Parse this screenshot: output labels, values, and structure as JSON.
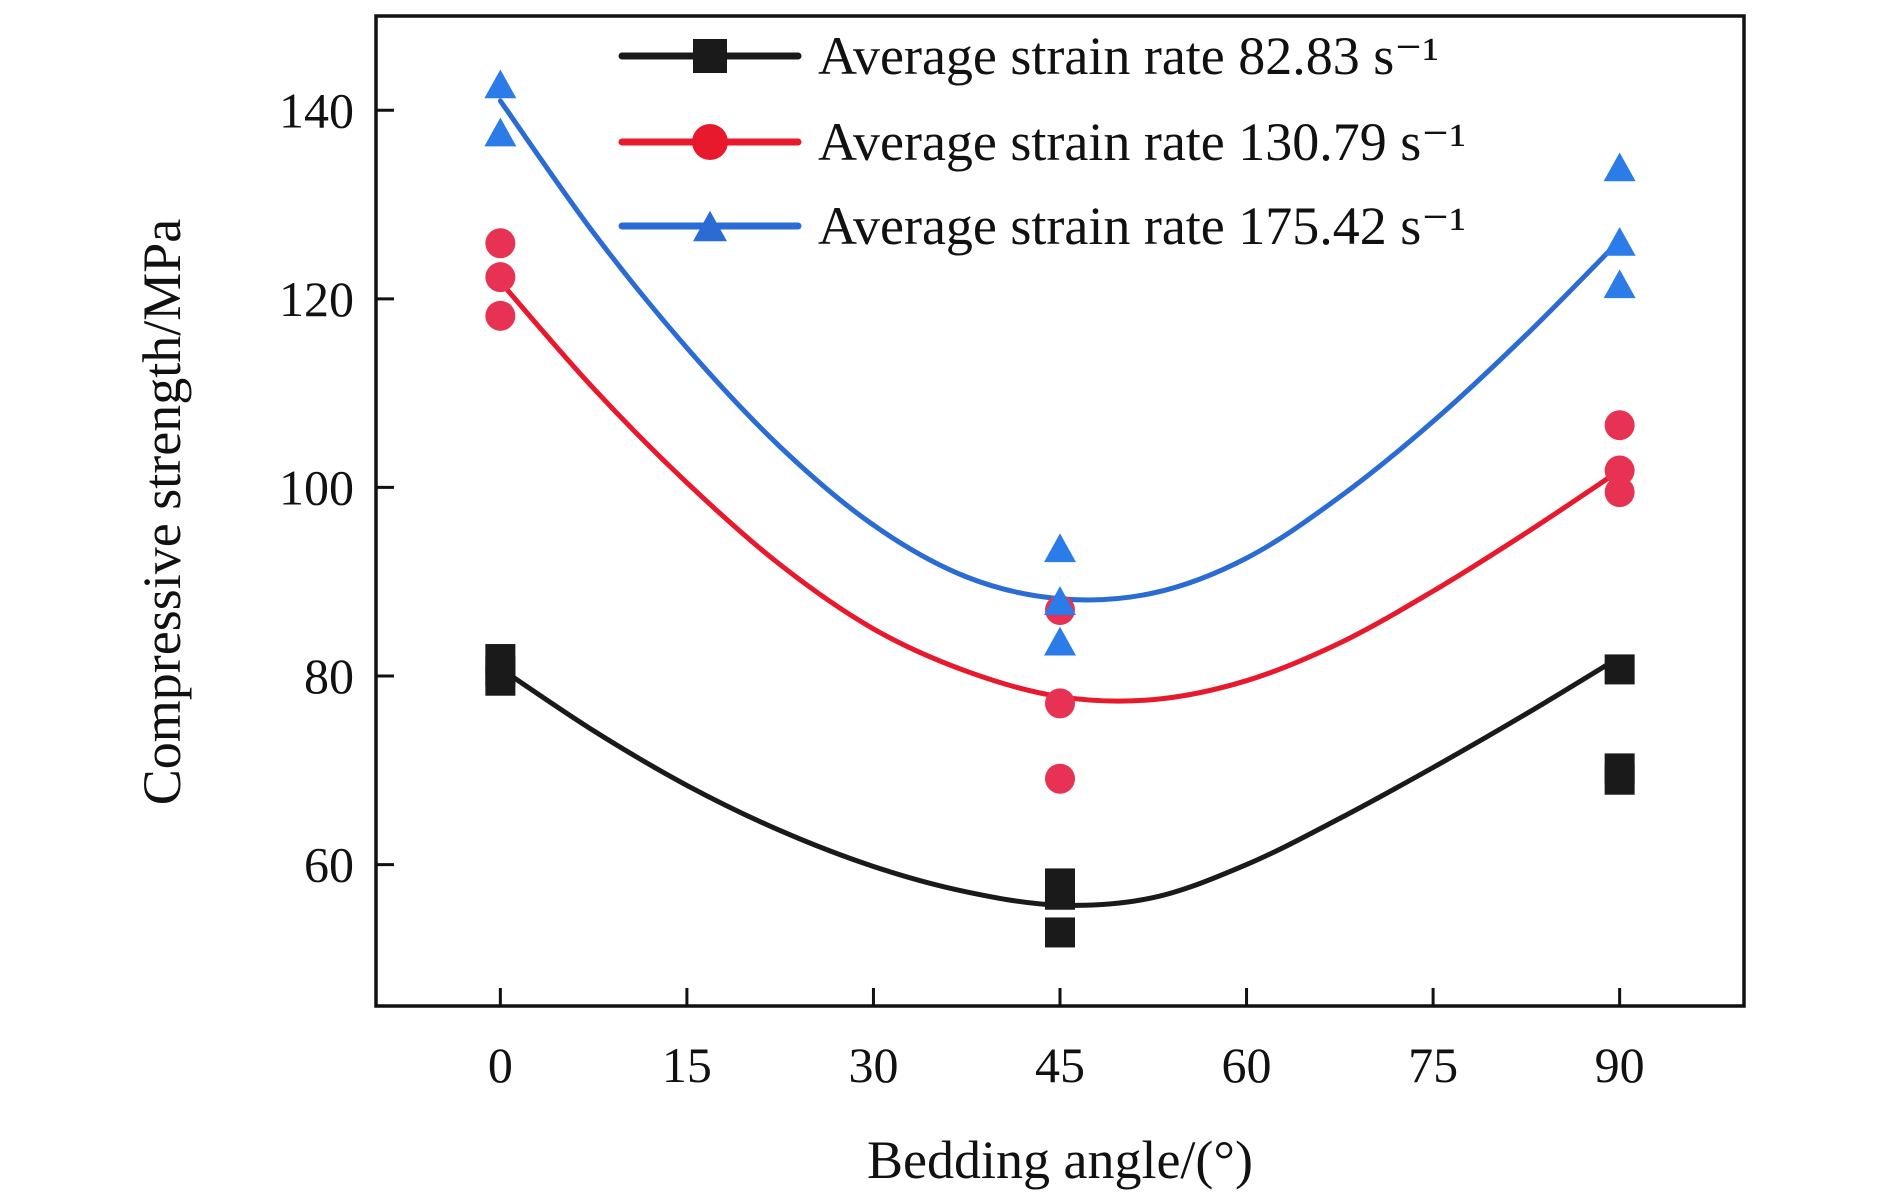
{
  "chart_data": {
    "type": "scatter",
    "title": "",
    "xlabel": "Bedding angle/(°)",
    "ylabel": "Compressive strength/MPa",
    "xlim": [
      -10,
      100
    ],
    "ylim": [
      45,
      150
    ],
    "xticks": [
      0,
      15,
      30,
      45,
      60,
      75,
      90
    ],
    "yticks": [
      60,
      80,
      100,
      120,
      140
    ],
    "grid": false,
    "legend_position": "top-right",
    "series": [
      {
        "name": "Average strain rate 82.83 s⁻¹",
        "color": "#1a1a1a",
        "marker": "square",
        "x": [
          0,
          0,
          0,
          45,
          45,
          45,
          90,
          90,
          90
        ],
        "y": [
          79.5,
          80.5,
          81.8,
          52.8,
          56.8,
          58.0,
          69.0,
          70.2,
          80.7
        ],
        "fit": {
          "x": [
            0,
            7.5,
            15,
            22.5,
            30,
            37.5,
            45,
            52.5,
            60,
            67.5,
            75,
            82.5,
            90
          ],
          "y": [
            80.8,
            74.2,
            68.4,
            63.6,
            59.8,
            57.1,
            55.7,
            56.5,
            60.0,
            64.9,
            70.3,
            76.0,
            82.0
          ]
        }
      },
      {
        "name": "Average strain rate 130.79 s⁻¹",
        "color": "#e8192c",
        "point_color": "#e83254",
        "marker": "circle",
        "x": [
          0,
          0,
          0,
          45,
          45,
          45,
          90,
          90,
          90
        ],
        "y": [
          118.2,
          122.3,
          125.9,
          69.1,
          77.1,
          87.0,
          99.5,
          101.8,
          106.6
        ],
        "fit": {
          "x": [
            0,
            7.5,
            15,
            22.5,
            30,
            37.5,
            45,
            52.5,
            60,
            67.5,
            75,
            82.5,
            90
          ],
          "y": [
            121.8,
            110.5,
            100.5,
            91.8,
            85.0,
            80.5,
            77.8,
            77.5,
            79.5,
            83.5,
            89.0,
            95.2,
            101.8
          ]
        }
      },
      {
        "name": "Average strain rate 175.42 s⁻¹",
        "color": "#2a6cd3",
        "point_color": "#2b7be8",
        "marker": "triangle",
        "x": [
          0,
          0,
          45,
          45,
          45,
          90,
          90,
          90
        ],
        "y": [
          137.7,
          142.8,
          83.7,
          88.0,
          93.6,
          121.6,
          126.1,
          134.0
        ],
        "fit": {
          "x": [
            0,
            7.5,
            15,
            22.5,
            30,
            37.5,
            45,
            52.5,
            60,
            67.5,
            75,
            82.5,
            90
          ],
          "y": [
            141.0,
            127.0,
            114.8,
            104.3,
            96.0,
            90.5,
            88.2,
            88.8,
            92.5,
            99.0,
            107.0,
            116.2,
            126.2
          ]
        }
      }
    ]
  }
}
